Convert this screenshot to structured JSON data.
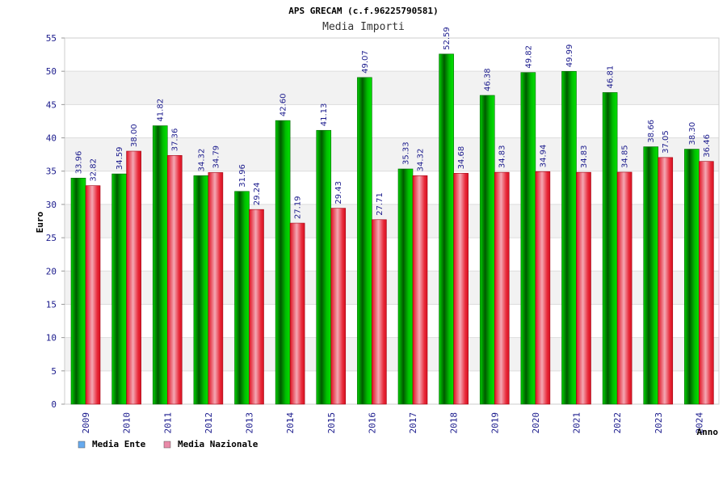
{
  "chart_data": {
    "type": "bar",
    "title": "APS GRECAM (c.f.96225790581)",
    "subtitle": "Media Importi",
    "xlabel": "Anno",
    "ylabel": "Euro",
    "ylim": [
      0,
      55
    ],
    "yticks": [
      "0",
      "5",
      "10",
      "15",
      "20",
      "25",
      "30",
      "35",
      "40",
      "45",
      "50",
      "55"
    ],
    "categories": [
      "2009",
      "2010",
      "2011",
      "2012",
      "2013",
      "2014",
      "2015",
      "2016",
      "2017",
      "2018",
      "2019",
      "2020",
      "2021",
      "2022",
      "2023",
      "2024"
    ],
    "series": [
      {
        "name": "Media Ente",
        "color": "#00aa00",
        "legend_color": "#66aaee",
        "values": [
          33.96,
          34.59,
          41.82,
          34.32,
          31.96,
          42.6,
          41.13,
          49.07,
          35.33,
          52.59,
          46.38,
          49.82,
          49.99,
          46.81,
          38.66,
          38.3
        ],
        "labels": [
          "33.96",
          "34.59",
          "41.82",
          "34.32",
          "31.96",
          "42.60",
          "41.13",
          "49.07",
          "35.33",
          "52.59",
          "46.38",
          "49.82",
          "49.99",
          "46.81",
          "38.66",
          "38.30"
        ]
      },
      {
        "name": "Media Nazionale",
        "color": "#e8202a",
        "legend_color": "#e98aa8",
        "values": [
          32.82,
          38.0,
          37.36,
          34.79,
          29.24,
          27.19,
          29.43,
          27.71,
          34.32,
          34.68,
          34.83,
          34.94,
          34.83,
          34.85,
          37.05,
          36.46
        ],
        "labels": [
          "32.82",
          "38.00",
          "37.36",
          "34.79",
          "29.24",
          "27.19",
          "29.43",
          "27.71",
          "34.32",
          "34.68",
          "34.83",
          "34.94",
          "34.83",
          "34.85",
          "37.05",
          "36.46"
        ]
      }
    ],
    "grid": true,
    "legend": "bottom-left"
  }
}
